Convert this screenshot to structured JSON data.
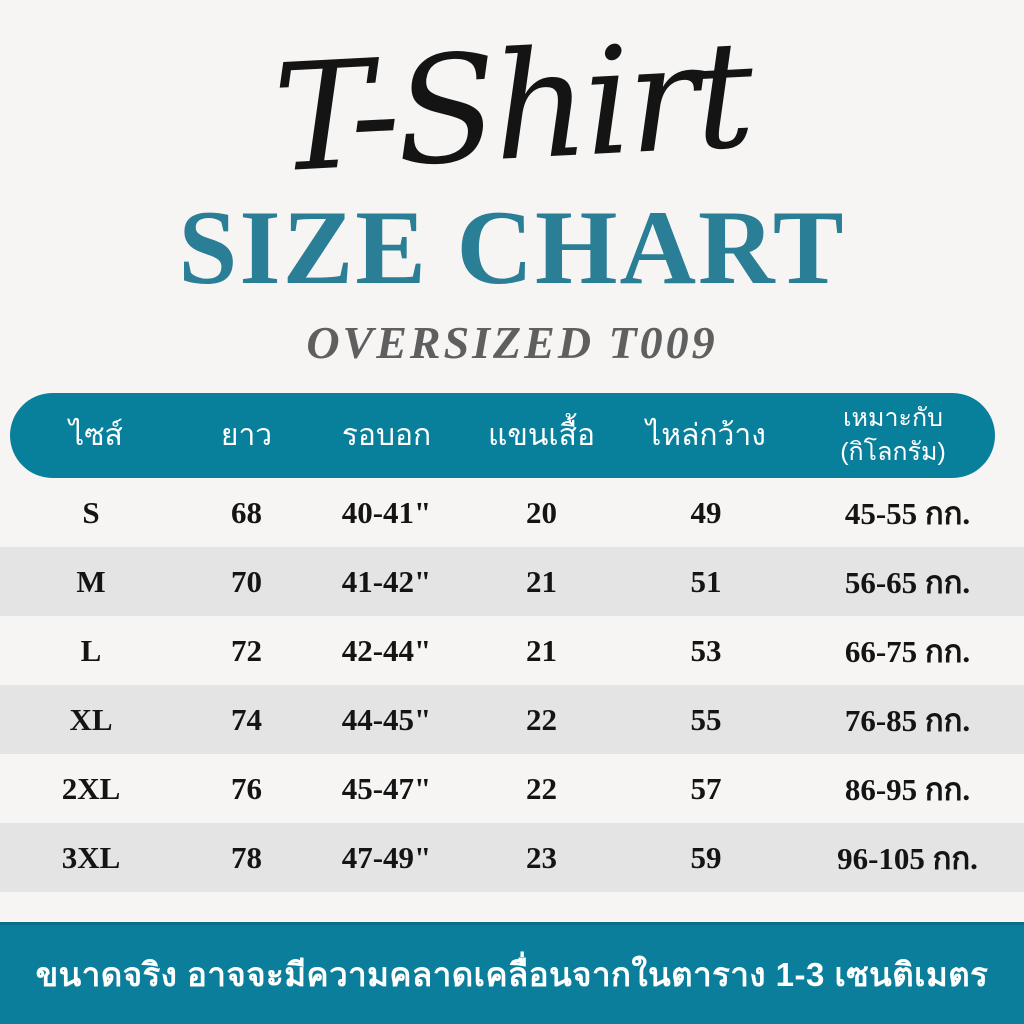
{
  "title": {
    "script": "T-Shirt",
    "main": "SIZE CHART",
    "subtitle": "OVERSIZED T009"
  },
  "colors": {
    "accent_teal": "#087f9b",
    "footer_teal": "#0a7e9b",
    "title_teal": "#2a7e96",
    "stripe_gray": "#e4e4e4",
    "background": "#f6f5f3",
    "subtitle_gray": "#5f5f5f",
    "text_black": "#141414"
  },
  "table": {
    "headers": {
      "size": "ไซส์",
      "length": "ยาว",
      "chest": "รอบอก",
      "sleeve": "แขนเสื้อ",
      "shoulder": "ไหล่กว้าง",
      "weight_line1": "เหมาะกับ",
      "weight_line2": "(กิโลกรัม)"
    },
    "rows": [
      {
        "size": "S",
        "length": "68",
        "chest": "40-41\"",
        "sleeve": "20",
        "shoulder": "49",
        "weight": "45-55 กก."
      },
      {
        "size": "M",
        "length": "70",
        "chest": "41-42\"",
        "sleeve": "21",
        "shoulder": "51",
        "weight": "56-65 กก."
      },
      {
        "size": "L",
        "length": "72",
        "chest": "42-44\"",
        "sleeve": "21",
        "shoulder": "53",
        "weight": "66-75 กก."
      },
      {
        "size": "XL",
        "length": "74",
        "chest": "44-45\"",
        "sleeve": "22",
        "shoulder": "55",
        "weight": "76-85 กก."
      },
      {
        "size": "2XL",
        "length": "76",
        "chest": "45-47\"",
        "sleeve": "22",
        "shoulder": "57",
        "weight": "86-95 กก."
      },
      {
        "size": "3XL",
        "length": "78",
        "chest": "47-49\"",
        "sleeve": "23",
        "shoulder": "59",
        "weight": "96-105 กก."
      }
    ]
  },
  "footer": {
    "note": "ขนาดจริง อาจจะมีความคลาดเคลื่อนจากในตาราง 1-3 เซนติเมตร"
  }
}
